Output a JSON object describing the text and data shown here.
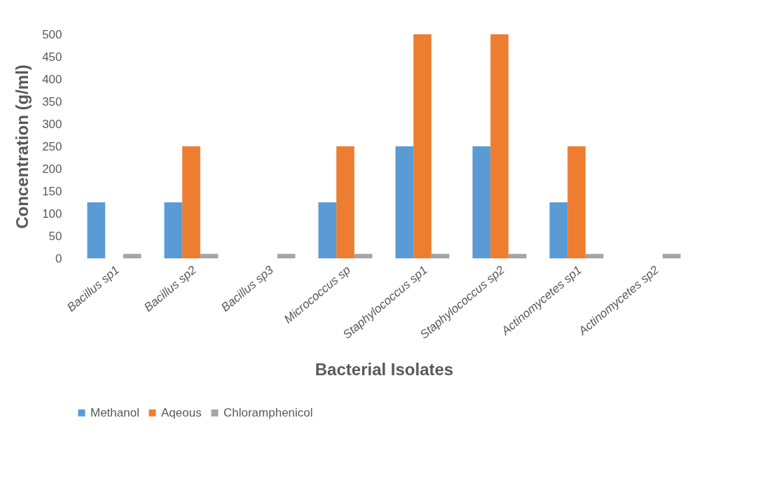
{
  "chart_data": {
    "type": "bar",
    "xlabel": "Bacterial Isolates",
    "ylabel": "Concentration (g/ml)",
    "categories": [
      "Bacillus sp1",
      "Bacillus sp2",
      "Bacillus sp3",
      "Micrococcus sp",
      "Staphylococcus sp1",
      "Staphylococcus sp2",
      "Actinomycetes sp1",
      "Actinomycetes sp2"
    ],
    "series": [
      {
        "name": "Methanol",
        "color": "#5b9bd5",
        "values": [
          125,
          125,
          0,
          125,
          250,
          250,
          125,
          0
        ]
      },
      {
        "name": "Aqeous",
        "color": "#ed7d31",
        "values": [
          0,
          250,
          0,
          250,
          500,
          500,
          250,
          0
        ]
      },
      {
        "name": "Chloramphenicol",
        "color": "#a5a5a5",
        "values": [
          10,
          10,
          10,
          10,
          10,
          10,
          10,
          10
        ]
      }
    ],
    "ylim": [
      0,
      500
    ],
    "yticks": [
      0,
      50,
      100,
      150,
      200,
      250,
      300,
      350,
      400,
      450,
      500
    ],
    "grid": false,
    "legend": "bottom"
  }
}
